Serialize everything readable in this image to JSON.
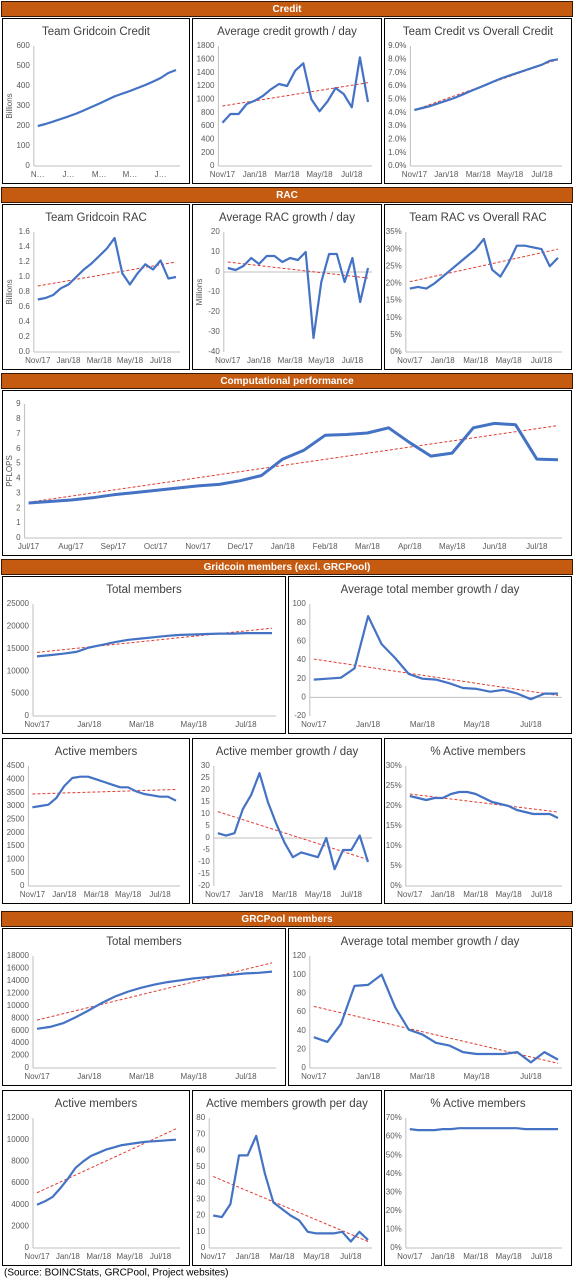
{
  "sections": [
    "Credit",
    "RAC",
    "Computational performance",
    "Gridcoin members (excl. GRCPool)",
    "GRCPool members"
  ],
  "source": "(Source: BOINCStats, GRCPool, Project websites)",
  "chart_data": [
    {
      "type": "line",
      "title": "Team Gridcoin Credit",
      "ylabel": "Billions",
      "color": "#4472c4",
      "categories": [
        "N…",
        null,
        null,
        null,
        "J…",
        null,
        null,
        null,
        "M…",
        null,
        null,
        null,
        "M…",
        null,
        null,
        null,
        "J…",
        null,
        null
      ],
      "values": [
        200,
        210,
        222,
        235,
        248,
        262,
        278,
        295,
        312,
        330,
        348,
        362,
        375,
        390,
        405,
        422,
        440,
        465,
        480
      ],
      "ylim": [
        0,
        600
      ],
      "yticks": [
        0,
        100,
        200,
        300,
        400,
        500,
        600
      ]
    },
    {
      "type": "line",
      "title": "Average credit growth / day",
      "color": "#4472c4",
      "categories": [
        "Nov/17",
        null,
        null,
        null,
        "Jan/18",
        null,
        null,
        null,
        "Mar/18",
        null,
        null,
        null,
        "May/18",
        null,
        null,
        null,
        "Jul/18",
        null,
        null
      ],
      "values": [
        650,
        780,
        780,
        930,
        980,
        1050,
        1150,
        1230,
        1200,
        1430,
        1540,
        1000,
        820,
        970,
        1170,
        1080,
        880,
        1630,
        960
      ],
      "trend": [
        900,
        1250
      ],
      "ylim": [
        0,
        1800
      ],
      "yticks": [
        0,
        200,
        400,
        600,
        800,
        1000,
        1200,
        1400,
        1600,
        1800
      ]
    },
    {
      "type": "line",
      "title": "Team Credit vs Overall Credit",
      "color": "#4472c4",
      "categories": [
        "Nov/17",
        null,
        null,
        null,
        "Jan/18",
        null,
        null,
        null,
        "Mar/18",
        null,
        null,
        null,
        "May/18",
        null,
        null,
        null,
        "Jul/18",
        null,
        null
      ],
      "values": [
        4.2,
        4.35,
        4.5,
        4.7,
        4.9,
        5.1,
        5.35,
        5.6,
        5.85,
        6.1,
        6.35,
        6.6,
        6.8,
        7.0,
        7.2,
        7.4,
        7.6,
        7.9,
        8.0
      ],
      "trend": [
        4.2,
        8.0
      ],
      "ylim": [
        0,
        9
      ],
      "yticks": [
        {
          "value": 0,
          "label": "0.0%"
        },
        {
          "value": 1,
          "label": "1.0%"
        },
        {
          "value": 2,
          "label": "2.0%"
        },
        {
          "value": 3,
          "label": "3.0%"
        },
        {
          "value": 4,
          "label": "4.0%"
        },
        {
          "value": 5,
          "label": "5.0%"
        },
        {
          "value": 6,
          "label": "6.0%"
        },
        {
          "value": 7,
          "label": "7.0%"
        },
        {
          "value": 8,
          "label": "8.0%"
        },
        {
          "value": 9,
          "label": "9.0%"
        }
      ]
    },
    {
      "type": "line",
      "title": "Team Gridcoin RAC",
      "ylabel": "Billions",
      "color": "#4472c4",
      "categories": [
        "Nov/17",
        null,
        null,
        null,
        "Jan/18",
        null,
        null,
        null,
        "Mar/18",
        null,
        null,
        null,
        "May/18",
        null,
        null,
        null,
        "Jul/18",
        null,
        null
      ],
      "values": [
        0.7,
        0.72,
        0.76,
        0.85,
        0.9,
        1.0,
        1.1,
        1.18,
        1.28,
        1.38,
        1.52,
        1.05,
        0.9,
        1.05,
        1.17,
        1.1,
        1.22,
        0.98,
        1.0
      ],
      "trend": [
        0.88,
        1.2
      ],
      "ylim": [
        0,
        1.6
      ],
      "yticks": [
        {
          "value": 0,
          "label": "0.0"
        },
        0.2,
        0.4,
        0.6,
        0.8,
        {
          "value": 1,
          "label": "1.0"
        },
        1.2,
        1.4,
        1.6
      ]
    },
    {
      "type": "line",
      "title": "Average RAC growth / day",
      "ylabel": "Millions",
      "color": "#4472c4",
      "categories": [
        "Nov/17",
        null,
        null,
        null,
        "Jan/18",
        null,
        null,
        null,
        "Mar/18",
        null,
        null,
        null,
        "May/18",
        null,
        null,
        null,
        "Jul/18",
        null,
        null
      ],
      "values": [
        2,
        1,
        3,
        7,
        4,
        8,
        8,
        5,
        7,
        6,
        10,
        -33,
        -5,
        9,
        9,
        -5,
        7,
        -15,
        2
      ],
      "trend": [
        5,
        -3
      ],
      "ylim": [
        -40,
        20
      ],
      "yticks": [
        -40,
        -30,
        -20,
        -10,
        0,
        10,
        20
      ]
    },
    {
      "type": "line",
      "title": "Team RAC vs Overall RAC",
      "color": "#4472c4",
      "categories": [
        "Nov/17",
        null,
        null,
        null,
        "Jan/18",
        null,
        null,
        null,
        "Mar/18",
        null,
        null,
        null,
        "May/18",
        null,
        null,
        null,
        "Jul/18",
        null,
        null
      ],
      "values": [
        18.5,
        19,
        18.5,
        20,
        22,
        24,
        26,
        28,
        30,
        33,
        24,
        22,
        26,
        31,
        31,
        30.5,
        30,
        25,
        27.5
      ],
      "trend": [
        20.5,
        30
      ],
      "ylim": [
        0,
        35
      ],
      "yticks": [
        {
          "value": 0,
          "label": "0%"
        },
        {
          "value": 5,
          "label": "5%"
        },
        {
          "value": 10,
          "label": "10%"
        },
        {
          "value": 15,
          "label": "15%"
        },
        {
          "value": 20,
          "label": "20%"
        },
        {
          "value": 25,
          "label": "25%"
        },
        {
          "value": 30,
          "label": "30%"
        },
        {
          "value": 35,
          "label": "35%"
        }
      ]
    },
    {
      "type": "line",
      "ylabel": "PFLOPS",
      "color": "#4472c4",
      "categories": [
        "Jul/17",
        null,
        "Aug/17",
        null,
        "Sep/17",
        null,
        "Oct/17",
        null,
        "Nov/17",
        null,
        "Dec/17",
        null,
        "Jan/18",
        null,
        "Feb/18",
        null,
        "Mar/18",
        null,
        "Apr/18",
        null,
        "May/18",
        null,
        "Jun/18",
        null,
        "Jul/18",
        null
      ],
      "values": [
        2.35,
        2.45,
        2.55,
        2.7,
        2.9,
        3.05,
        3.2,
        3.35,
        3.5,
        3.6,
        3.85,
        4.2,
        5.3,
        5.9,
        6.9,
        6.95,
        7.05,
        7.4,
        6.4,
        5.5,
        5.7,
        7.4,
        7.7,
        7.6,
        5.3,
        5.25
      ],
      "trend": [
        2.4,
        7.55
      ],
      "ylim": [
        0,
        9
      ],
      "yticks": [
        0,
        1,
        2,
        3,
        4,
        5,
        6,
        7,
        8,
        9
      ]
    },
    {
      "type": "line",
      "title": "Total members",
      "color": "#4472c4",
      "categories": [
        "Nov/17",
        null,
        null,
        null,
        "Jan/18",
        null,
        null,
        null,
        "Mar/18",
        null,
        null,
        null,
        "May/18",
        null,
        null,
        null,
        "Jul/18",
        null,
        null
      ],
      "values": [
        13300,
        13600,
        13900,
        14300,
        15300,
        15900,
        16500,
        17000,
        17300,
        17600,
        17900,
        18100,
        18200,
        18300,
        18400,
        18400,
        18500,
        18500,
        18500
      ],
      "trend": [
        14200,
        19600
      ],
      "ylim": [
        0,
        25000
      ],
      "yticks": [
        0,
        5000,
        10000,
        15000,
        20000,
        25000
      ]
    },
    {
      "type": "line",
      "title": "Average total member growth / day",
      "color": "#4472c4",
      "categories": [
        "Nov/17",
        null,
        null,
        null,
        "Jan/18",
        null,
        null,
        null,
        "Mar/18",
        null,
        null,
        null,
        "May/18",
        null,
        null,
        null,
        "Jul/18",
        null,
        null
      ],
      "values": [
        19,
        20,
        21,
        31,
        87,
        57,
        42,
        25,
        20,
        19,
        15,
        10,
        9,
        6,
        8,
        4,
        -2,
        4,
        4
      ],
      "trend": [
        41,
        2
      ],
      "ylim": [
        -20,
        100
      ],
      "yticks": [
        -20,
        0,
        20,
        40,
        60,
        80,
        100
      ]
    },
    {
      "type": "line",
      "title": "Active members",
      "color": "#4472c4",
      "categories": [
        "Nov/17",
        null,
        null,
        null,
        "Jan/18",
        null,
        null,
        null,
        "Mar/18",
        null,
        null,
        null,
        "May/18",
        null,
        null,
        null,
        "Jul/18",
        null,
        null
      ],
      "values": [
        2950,
        3000,
        3050,
        3300,
        3750,
        4050,
        4100,
        4100,
        4000,
        3900,
        3800,
        3700,
        3700,
        3550,
        3450,
        3400,
        3350,
        3350,
        3200
      ],
      "trend": [
        3450,
        3620
      ],
      "ylim": [
        0,
        4500
      ],
      "yticks": [
        0,
        500,
        1000,
        1500,
        2000,
        2500,
        3000,
        3500,
        4000,
        4500
      ]
    },
    {
      "type": "line",
      "title": "Active member growth / day",
      "color": "#4472c4",
      "categories": [
        "Nov/17",
        null,
        null,
        null,
        "Jan/18",
        null,
        null,
        null,
        "Mar/18",
        null,
        null,
        null,
        "May/18",
        null,
        null,
        null,
        "Jul/18",
        null,
        null
      ],
      "values": [
        2,
        1,
        2,
        12,
        18,
        27,
        15,
        6,
        -2,
        -8,
        -6,
        -7,
        -8,
        0,
        -13,
        -5,
        -5,
        1,
        -10
      ],
      "trend": [
        11,
        -9
      ],
      "ylim": [
        -20,
        30
      ],
      "yticks": [
        -20,
        -15,
        -10,
        -5,
        0,
        5,
        10,
        15,
        20,
        25,
        30
      ]
    },
    {
      "type": "line",
      "title": "% Active members",
      "color": "#4472c4",
      "categories": [
        "Nov/17",
        null,
        null,
        null,
        "Jan/18",
        null,
        null,
        null,
        "Mar/18",
        null,
        null,
        null,
        "May/18",
        null,
        null,
        null,
        "Jul/18",
        null,
        null
      ],
      "values": [
        22.5,
        22,
        21.5,
        22,
        22,
        23,
        23.5,
        23.5,
        23,
        22,
        21,
        20.5,
        20,
        19,
        18.5,
        18,
        18,
        18,
        17
      ],
      "trend": [
        23,
        18.5
      ],
      "ylim": [
        0,
        30
      ],
      "yticks": [
        {
          "value": 0,
          "label": "0%"
        },
        {
          "value": 5,
          "label": "5%"
        },
        {
          "value": 10,
          "label": "10%"
        },
        {
          "value": 15,
          "label": "15%"
        },
        {
          "value": 20,
          "label": "20%"
        },
        {
          "value": 25,
          "label": "25%"
        },
        {
          "value": 30,
          "label": "30%"
        }
      ]
    },
    {
      "type": "line",
      "title": "Total members",
      "color": "#4472c4",
      "categories": [
        "Nov/17",
        null,
        null,
        null,
        "Jan/18",
        null,
        null,
        null,
        "Mar/18",
        null,
        null,
        null,
        "May/18",
        null,
        null,
        null,
        "Jul/18",
        null,
        null
      ],
      "values": [
        6300,
        6600,
        7200,
        8200,
        9300,
        10500,
        11500,
        12300,
        12900,
        13400,
        13800,
        14100,
        14400,
        14600,
        14800,
        15000,
        15200,
        15300,
        15500
      ],
      "trend": [
        7700,
        16900
      ],
      "ylim": [
        0,
        18000
      ],
      "yticks": [
        0,
        2000,
        4000,
        6000,
        8000,
        10000,
        12000,
        14000,
        16000,
        18000
      ]
    },
    {
      "type": "line",
      "title": "Average total member growth / day",
      "color": "#4472c4",
      "categories": [
        "Nov/17",
        null,
        null,
        null,
        "Jan/18",
        null,
        null,
        null,
        "Mar/18",
        null,
        null,
        null,
        "May/18",
        null,
        null,
        null,
        "Jul/18",
        null,
        null
      ],
      "values": [
        33,
        28,
        47,
        88,
        89,
        100,
        65,
        41,
        36,
        27,
        24,
        17,
        15,
        15,
        15,
        17,
        6,
        17,
        9
      ],
      "trend": [
        66,
        5
      ],
      "ylim": [
        0,
        120
      ],
      "yticks": [
        0,
        20,
        40,
        60,
        80,
        100,
        120
      ]
    },
    {
      "type": "line",
      "title": "Active members",
      "color": "#4472c4",
      "categories": [
        "Nov/17",
        null,
        null,
        null,
        "Jan/18",
        null,
        null,
        null,
        "Mar/18",
        null,
        null,
        null,
        "May/18",
        null,
        null,
        null,
        "Jul/18",
        null,
        null
      ],
      "values": [
        4000,
        4300,
        4700,
        5500,
        6400,
        7400,
        8000,
        8500,
        8800,
        9100,
        9300,
        9500,
        9600,
        9700,
        9800,
        9850,
        9900,
        9950,
        10000
      ],
      "trend": [
        5100,
        11000
      ],
      "ylim": [
        0,
        12000
      ],
      "yticks": [
        0,
        2000,
        4000,
        6000,
        8000,
        10000,
        12000
      ]
    },
    {
      "type": "line",
      "title": "Active members growth per day",
      "color": "#4472c4",
      "categories": [
        "Nov/17",
        null,
        null,
        null,
        "Jan/18",
        null,
        null,
        null,
        "Mar/18",
        null,
        null,
        null,
        "May/18",
        null,
        null,
        null,
        "Jul/18",
        null,
        null
      ],
      "values": [
        20,
        19,
        27,
        57,
        57,
        69,
        46,
        28,
        24,
        20,
        17,
        10,
        9,
        9,
        9,
        10,
        4,
        10,
        5
      ],
      "trend": [
        44,
        4
      ],
      "ylim": [
        0,
        80
      ],
      "yticks": [
        0,
        10,
        20,
        30,
        40,
        50,
        60,
        70,
        80
      ]
    },
    {
      "type": "line",
      "title": "% Active members",
      "color": "#4472c4",
      "categories": [
        "Nov/17",
        null,
        null,
        null,
        "Jan/18",
        null,
        null,
        null,
        "Mar/18",
        null,
        null,
        null,
        "May/18",
        null,
        null,
        null,
        "Jul/18",
        null,
        null
      ],
      "values": [
        64,
        63.5,
        63.5,
        63.5,
        64,
        64,
        64.5,
        64.5,
        64.5,
        64.5,
        64.5,
        64.5,
        64.5,
        64.5,
        64,
        64,
        64,
        64,
        64
      ],
      "ylim": [
        0,
        70
      ],
      "yticks": [
        {
          "value": 0,
          "label": "0%"
        },
        {
          "value": 10,
          "label": "10%"
        },
        {
          "value": 20,
          "label": "20%"
        },
        {
          "value": 30,
          "label": "30%"
        },
        {
          "value": 40,
          "label": "40%"
        },
        {
          "value": 50,
          "label": "50%"
        },
        {
          "value": 60,
          "label": "60%"
        },
        {
          "value": 70,
          "label": "70%"
        }
      ]
    }
  ]
}
